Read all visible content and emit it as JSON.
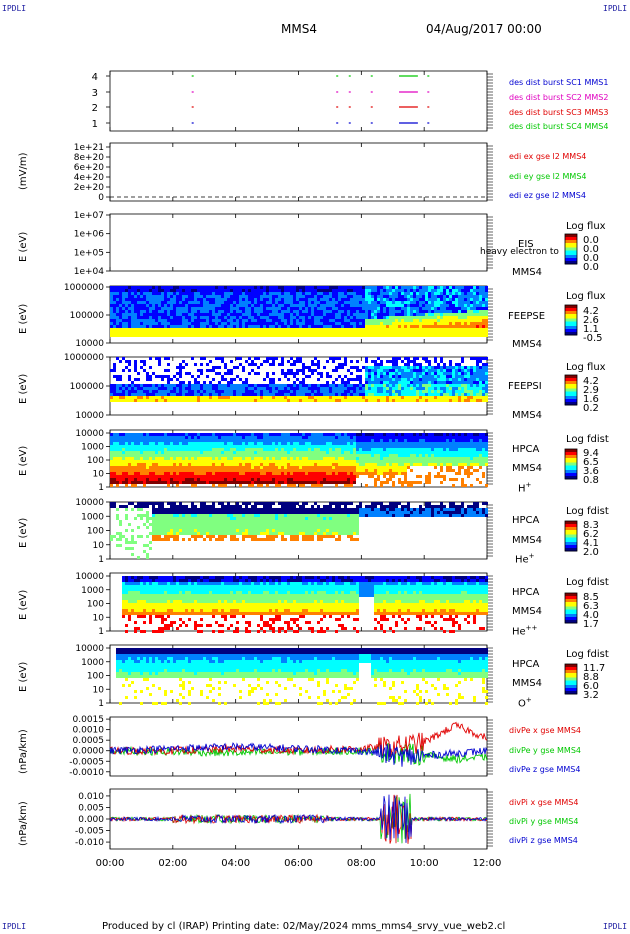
{
  "corners": {
    "top_left": "IPDLI",
    "top_right": "IPDLI",
    "bottom_left": "IPDLI",
    "bottom_right": "IPDLI"
  },
  "header": {
    "spacecraft": "MMS4",
    "date": "04/Aug/2017 00:00"
  },
  "footer": {
    "text": "Produced by cl (IRAP)   Printing date: 02/May/2024   mms_mms4_srvy_vue_web2.cl"
  },
  "time_axis": {
    "ticks": [
      "00:00",
      "02:00",
      "04:00",
      "06:00",
      "08:00",
      "10:00",
      "12:00"
    ]
  },
  "colors": {
    "red": "#e00000",
    "green": "#00c800",
    "blue": "#0000d0",
    "magenta": "#e000c0",
    "spec_scale": [
      "#00007f",
      "#0000ff",
      "#0080ff",
      "#00ffff",
      "#80ff80",
      "#ffff00",
      "#ff8000",
      "#ff0000",
      "#7f0000"
    ]
  },
  "panels": {
    "burst": {
      "yticks": [
        "4",
        "3",
        "2",
        "1"
      ],
      "legend": [
        "des dist burst SC1 MMS1",
        "des dist burst SC2 MMS2",
        "des dist burst SC3 MMS3",
        "des dist burst SC4 MMS4"
      ]
    },
    "edi": {
      "ylabel": "(mV/m)",
      "yticks": [
        "1e+21",
        "8e+20",
        "6e+20",
        "4e+20",
        "2e+20",
        "0"
      ],
      "legend": [
        "edi ex gse l2 MMS4",
        "edi ey gse l2 MMS4",
        "edi ez gse l2 MMS4"
      ]
    },
    "eis": {
      "ylabel": "E (eV)",
      "yticks": [
        "1e+07",
        "1e+06",
        "1e+05",
        "1e+04"
      ],
      "label1": "EIS",
      "label2": "MMS4",
      "overlay": "heavy electron to",
      "cb_title": "Log flux",
      "cb_values": [
        "0.0",
        "0.0",
        "0.0",
        "0.0"
      ]
    },
    "feepse": {
      "ylabel": "E (eV)",
      "yticks": [
        "1000000",
        "100000",
        "10000"
      ],
      "label1": "FEEPSE",
      "label2": "MMS4",
      "cb_title": "Log flux",
      "cb_values": [
        "4.2",
        "2.6",
        "1.1",
        "-0.5"
      ]
    },
    "feepsi": {
      "ylabel": "E (eV)",
      "yticks": [
        "1000000",
        "100000",
        "10000"
      ],
      "label1": "FEEPSI",
      "label2": "MMS4",
      "cb_title": "Log flux",
      "cb_values": [
        "4.2",
        "2.9",
        "1.6",
        "0.2"
      ]
    },
    "hpca_h": {
      "ylabel": "E (eV)",
      "yticks": [
        "10000",
        "1000",
        "100",
        "10",
        "1"
      ],
      "label1": "HPCA",
      "label2": "MMS4",
      "species": "H",
      "charge": "+",
      "cb_title": "Log fdist",
      "cb_values": [
        "9.4",
        "6.5",
        "3.6",
        "0.8"
      ]
    },
    "hpca_he": {
      "ylabel": "E (eV)",
      "yticks": [
        "10000",
        "1000",
        "100",
        "10",
        "1"
      ],
      "label1": "HPCA",
      "label2": "MMS4",
      "species": "He",
      "charge": "+",
      "cb_title": "Log fdist",
      "cb_values": [
        "8.3",
        "6.2",
        "4.1",
        "2.0"
      ]
    },
    "hpca_hepp": {
      "ylabel": "E (eV)",
      "yticks": [
        "10000",
        "1000",
        "100",
        "10",
        "1"
      ],
      "label1": "HPCA",
      "label2": "MMS4",
      "species": "He",
      "charge": "++",
      "cb_title": "Log fdist",
      "cb_values": [
        "8.5",
        "6.3",
        "4.0",
        "1.7"
      ]
    },
    "hpca_o": {
      "ylabel": "E (eV)",
      "yticks": [
        "10000",
        "1000",
        "100",
        "10",
        "1"
      ],
      "label1": "HPCA",
      "label2": "MMS4",
      "species": "O",
      "charge": "+",
      "cb_title": "Log fdist",
      "cb_values": [
        "11.7",
        "8.8",
        "6.0",
        "3.2"
      ]
    },
    "divpe": {
      "ylabel": "(nPa/km)",
      "yticks": [
        "0.0015",
        "0.0010",
        "0.0005",
        "0.0000",
        "-0.0005",
        "-0.0010"
      ],
      "legend": [
        "divPe x gse MMS4",
        "divPe y gse MMS4",
        "divPe z gse MMS4"
      ]
    },
    "divpi": {
      "ylabel": "(nPa/km)",
      "yticks": [
        "0.010",
        "0.005",
        "0.000",
        "-0.005",
        "-0.010"
      ],
      "legend": [
        "divPi x gse MMS4",
        "divPi y gse MMS4",
        "divPi z gse MMS4"
      ]
    }
  },
  "chart_data": {
    "type": "heatmap",
    "x_range_hours": [
      0,
      12
    ],
    "burst_intervals": {
      "MMS1": [
        [
          2.6,
          2.65
        ],
        [
          7.2,
          7.25
        ],
        [
          7.6,
          7.65
        ],
        [
          8.3,
          8.35
        ],
        [
          9.2,
          9.8
        ],
        [
          10.1,
          10.15
        ]
      ],
      "MMS2": [
        [
          2.6,
          2.65
        ],
        [
          7.2,
          7.25
        ],
        [
          7.6,
          7.65
        ],
        [
          8.3,
          8.35
        ],
        [
          9.2,
          9.8
        ],
        [
          10.1,
          10.15
        ]
      ],
      "MMS3": [
        [
          2.6,
          2.65
        ],
        [
          7.2,
          7.25
        ],
        [
          7.6,
          7.65
        ],
        [
          8.3,
          8.35
        ],
        [
          9.2,
          9.8
        ],
        [
          10.1,
          10.15
        ]
      ],
      "MMS4": [
        [
          2.6,
          2.65
        ],
        [
          7.2,
          7.25
        ],
        [
          7.6,
          7.65
        ],
        [
          8.3,
          8.35
        ],
        [
          9.2,
          9.8
        ],
        [
          10.1,
          10.15
        ]
      ]
    },
    "divpe_x_envelope": [
      [
        0,
        0.0
      ],
      [
        2,
        0.0
      ],
      [
        4,
        0.0001
      ],
      [
        6,
        0.0
      ],
      [
        8,
        0.0001
      ],
      [
        9,
        0.0002
      ],
      [
        10,
        0.0004
      ],
      [
        11,
        0.0012
      ],
      [
        11.5,
        0.0009
      ],
      [
        12,
        0.0006
      ]
    ],
    "divpe_y_envelope": [
      [
        0,
        0.0
      ],
      [
        4,
        -0.0001
      ],
      [
        8,
        0.0
      ],
      [
        10,
        -0.0002
      ],
      [
        11,
        -0.0004
      ],
      [
        12,
        -0.0003
      ]
    ],
    "divpe_z_envelope": [
      [
        0,
        0.0
      ],
      [
        4,
        0.0002
      ],
      [
        8,
        0.0
      ],
      [
        9.5,
        -0.0003
      ],
      [
        12,
        0.0
      ]
    ]
  }
}
